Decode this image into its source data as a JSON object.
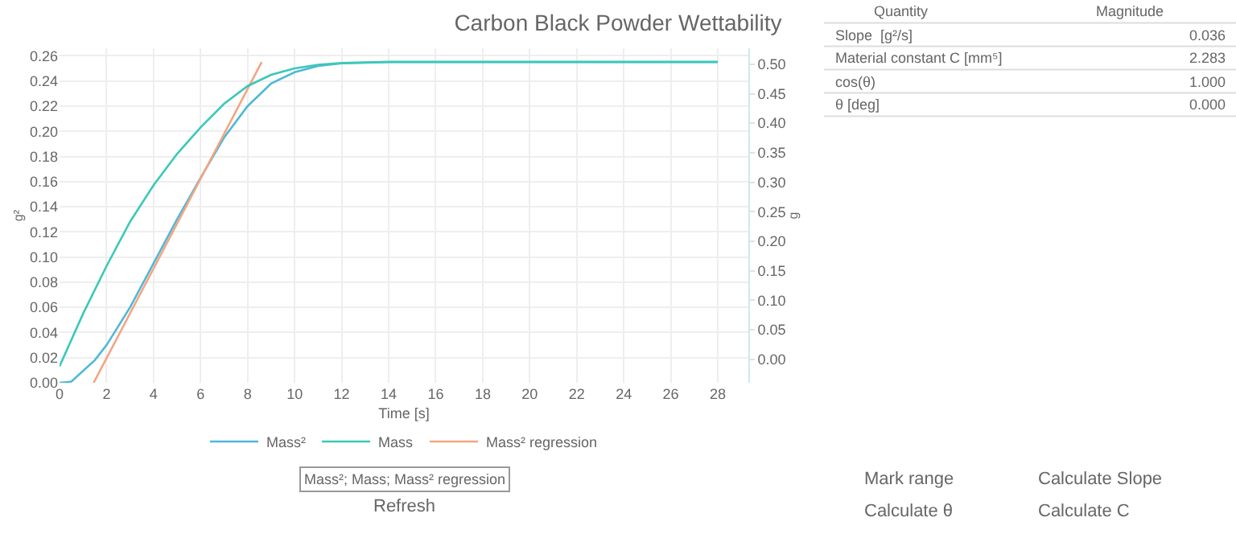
{
  "chart_data": [
    {
      "type": "line",
      "title": "Carbon Black Powder Wettability",
      "xlabel": "Time [s]",
      "ylabel": "g²",
      "y2label": "g",
      "xlim": [
        0,
        29.3
      ],
      "xticks": [
        0,
        2,
        4,
        6,
        8,
        10,
        12,
        14,
        16,
        18,
        20,
        22,
        24,
        26,
        28
      ],
      "ylim": [
        0,
        0.266
      ],
      "yticks": [
        {
          "value": 0,
          "label": "0.00"
        },
        0.02,
        0.04,
        0.06,
        0.08,
        {
          "value": 0.1,
          "label": "0.10"
        },
        0.12,
        0.14,
        0.16,
        0.18,
        {
          "value": 0.2,
          "label": "0.20"
        },
        0.22,
        0.24,
        0.26
      ],
      "y2lim": [
        -0.04,
        0.527
      ],
      "y2ticks": [
        {
          "value": 0,
          "label": "0.00"
        },
        0.05,
        {
          "value": 0.1,
          "label": "0.10"
        },
        0.15,
        {
          "value": 0.2,
          "label": "0.20"
        },
        0.25,
        {
          "value": 0.3,
          "label": "0.30"
        },
        0.35,
        {
          "value": 0.4,
          "label": "0.40"
        },
        0.45,
        {
          "value": 0.5,
          "label": "0.50"
        }
      ],
      "grid": true,
      "legend": "bottom",
      "marker": "none",
      "line_style": "solid",
      "series": [
        {
          "name": "Mass²",
          "color": "#4fb8d8",
          "x": [
            0,
            0.5,
            1.5,
            2,
            3,
            4,
            5,
            6,
            7,
            8,
            9,
            10,
            11,
            12,
            14,
            28
          ],
          "values": [
            0.0,
            0.001,
            0.018,
            0.03,
            0.06,
            0.095,
            0.13,
            0.163,
            0.195,
            0.22,
            0.238,
            0.247,
            0.252,
            0.254,
            0.255,
            0.255
          ]
        },
        {
          "name": "Mass",
          "color": "#3cc8b8",
          "axis": "y2",
          "x": [
            0,
            1,
            2,
            3,
            4,
            5,
            6,
            7,
            8,
            9,
            10,
            11,
            12,
            14,
            28
          ],
          "values": [
            -0.012,
            0.077,
            0.158,
            0.233,
            0.295,
            0.348,
            0.393,
            0.433,
            0.463,
            0.482,
            0.493,
            0.499,
            0.502,
            0.504,
            0.504
          ]
        },
        {
          "name": "Mass² regression",
          "color": "#f4a582",
          "x": [
            1.45,
            8.6
          ],
          "values": [
            0.0,
            0.255
          ]
        }
      ],
      "annotations": [
        "Mass²; Mass; Mass² regression",
        "Refresh"
      ]
    },
    {
      "type": "other",
      "annotations": [
        "Quantity",
        "Magnitude",
        "Slope  [g²/s]",
        "0.036",
        "Material constant C [mm⁵]",
        "2.283",
        "cos(θ)",
        "1.000",
        "θ [deg]",
        "0.000",
        "Mark range",
        "Calculate Slope",
        "Calculate θ",
        "Calculate C"
      ]
    }
  ]
}
